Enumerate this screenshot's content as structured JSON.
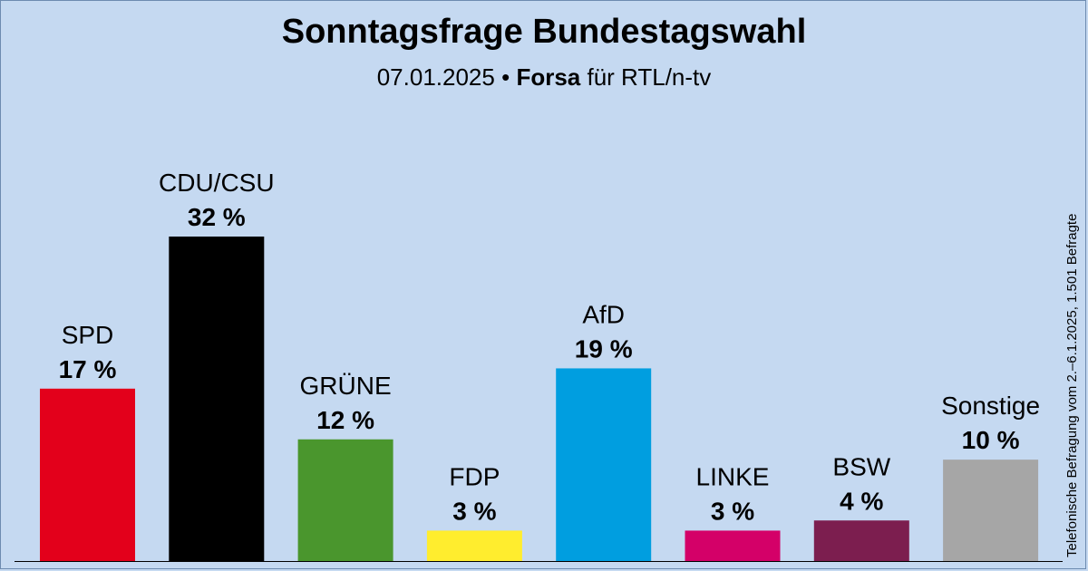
{
  "header": {
    "title": "Sonntagsfrage Bundestagswahl",
    "date": "07.01.2025",
    "separator": "•",
    "institute": "Forsa",
    "client": "für RTL/n-tv"
  },
  "side_note": "Telefonische Befragung vom 2.–6.1.2025, 1.501 Befragte",
  "chart_data": {
    "type": "bar",
    "title": "Sonntagsfrage Bundestagswahl",
    "categories": [
      "SPD",
      "CDU/CSU",
      "GRÜNE",
      "FDP",
      "AfD",
      "LINKE",
      "BSW",
      "Sonstige"
    ],
    "values": [
      17,
      32,
      12,
      3,
      19,
      3,
      4,
      10
    ],
    "value_labels": [
      "17 %",
      "32 %",
      "12 %",
      "3 %",
      "19 %",
      "3 %",
      "4 %",
      "10 %"
    ],
    "colors": [
      "#e3001b",
      "#000000",
      "#4a962d",
      "#ffed2e",
      "#009ee0",
      "#d40068",
      "#7c1e4f",
      "#a6a6a6"
    ],
    "unit": "%",
    "xlabel": "",
    "ylabel": "",
    "ylim": [
      0,
      32
    ],
    "grid": false,
    "legend": "none"
  }
}
